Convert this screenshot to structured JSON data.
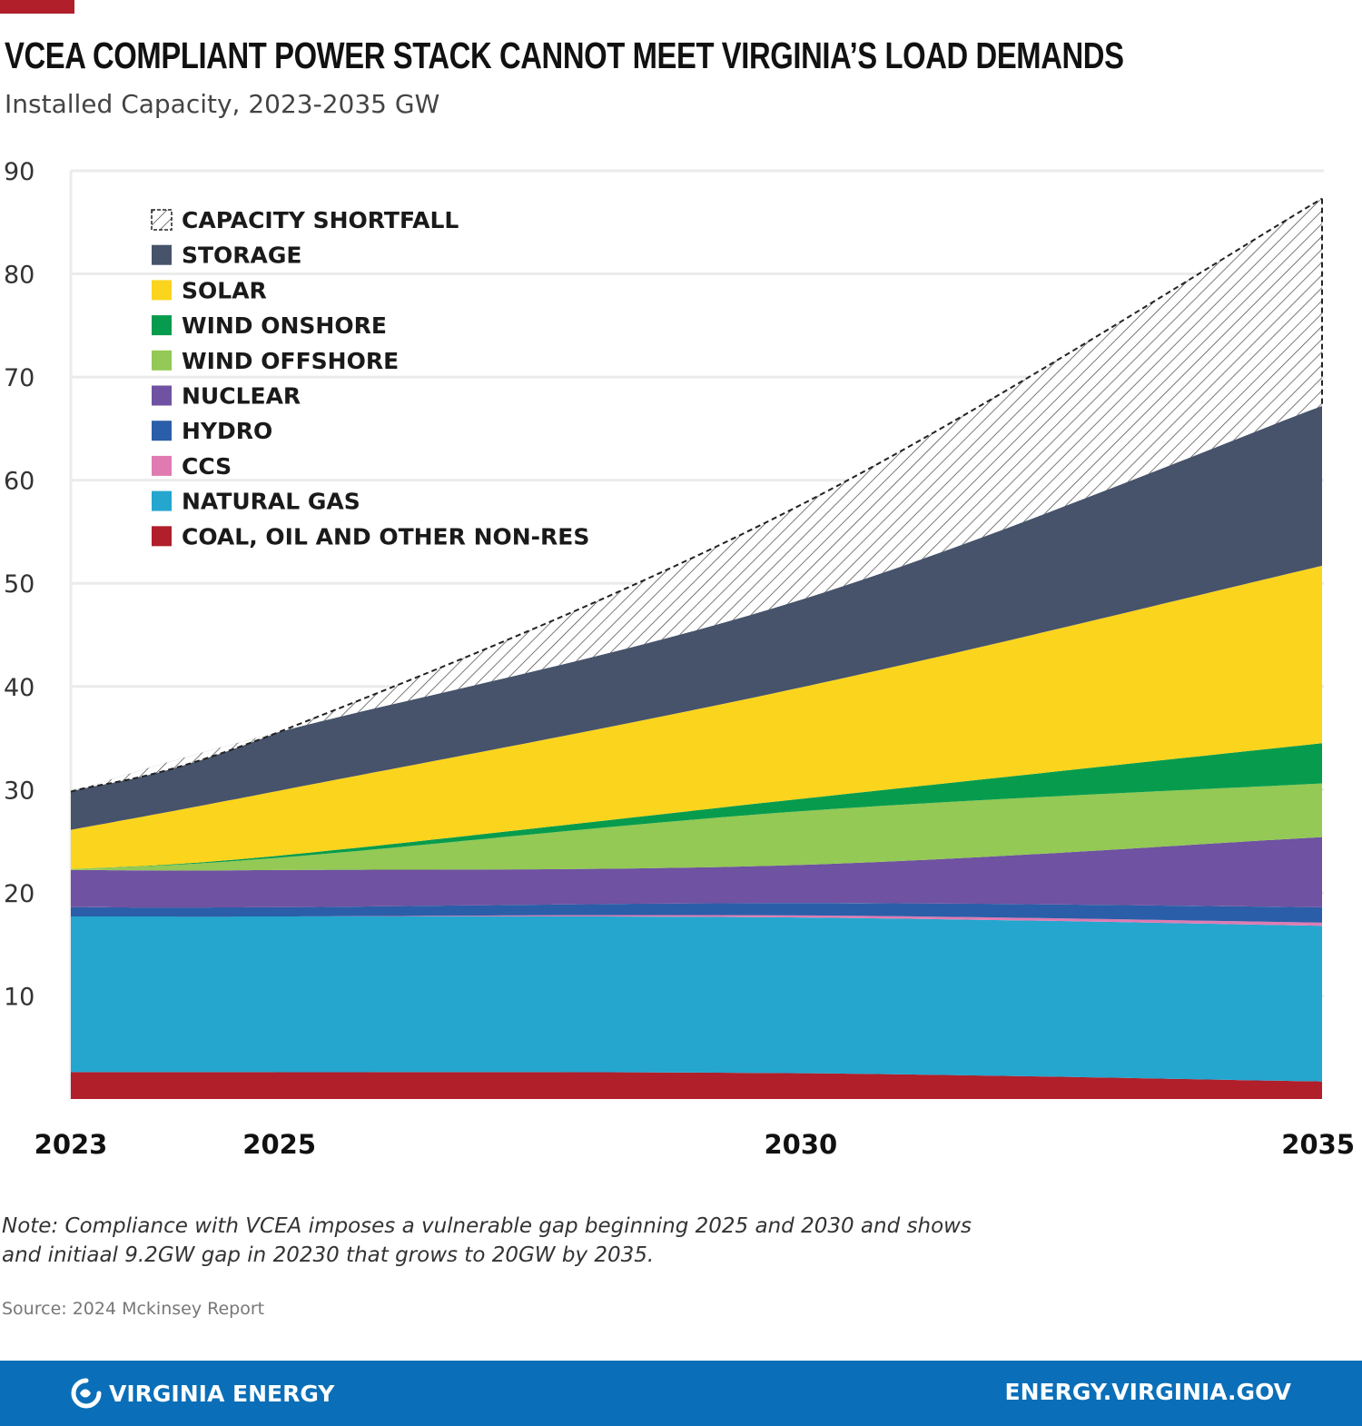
{
  "header": {
    "title": "VCEA COMPLIANT POWER STACK CANNOT MEET  VIRGINIA’S LOAD DEMANDS",
    "subtitle": "Installed Capacity, 2023-2035 GW"
  },
  "colors": {
    "accent": "#b01f2a",
    "footer_bg": "#0a6fb8",
    "grid": "#ebebeb"
  },
  "chart_data": {
    "type": "area",
    "stacked": true,
    "title": "VCEA COMPLIANT POWER STACK CANNOT MEET  VIRGINIA’S LOAD DEMANDS",
    "subtitle": "Installed Capacity, 2023-2035 GW",
    "x": [
      2023,
      2025,
      2030,
      2035
    ],
    "x_tick_labels": [
      "2023",
      "2025",
      "2030",
      "2035"
    ],
    "y_ticks": [
      10,
      20,
      30,
      40,
      50,
      60,
      70,
      80,
      90
    ],
    "ylim": [
      0,
      90
    ],
    "grid": true,
    "legend_position": "top-left",
    "series": [
      {
        "name": "COAL, OIL AND OTHER NON-RES",
        "color": "#b01f2a",
        "values": [
          2.6,
          2.6,
          2.5,
          1.7
        ]
      },
      {
        "name": "NATURAL GAS",
        "color": "#24a6cf",
        "values": [
          15.1,
          15.1,
          15.1,
          15.1
        ]
      },
      {
        "name": "CCS",
        "color": "#e07bb2",
        "values": [
          0,
          0,
          0.2,
          0.3
        ]
      },
      {
        "name": "HYDRO",
        "color": "#2b5ea8",
        "values": [
          0.9,
          0.9,
          1.2,
          1.5
        ]
      },
      {
        "name": "NUCLEAR",
        "color": "#6f52a1",
        "values": [
          3.6,
          3.6,
          3.7,
          6.8
        ]
      },
      {
        "name": "WIND OFFSHORE",
        "color": "#93c954",
        "values": [
          0.1,
          1.2,
          5.2,
          5.2
        ]
      },
      {
        "name": "WIND ONSHORE",
        "color": "#079c4d",
        "values": [
          0,
          0.2,
          1.2,
          3.9
        ]
      },
      {
        "name": "SOLAR",
        "color": "#fbd41e",
        "values": [
          3.8,
          6.3,
          10.8,
          17.2
        ]
      },
      {
        "name": "STORAGE",
        "color": "#46536b",
        "values": [
          3.7,
          5.7,
          8.5,
          15.5
        ]
      },
      {
        "name": "CAPACITY SHORTFALL",
        "color": "#ffffff",
        "pattern": "hatched",
        "values": [
          0,
          0,
          9.2,
          20.1
        ]
      }
    ],
    "legend_order": [
      "CAPACITY SHORTFALL",
      "STORAGE",
      "SOLAR",
      "WIND ONSHORE",
      "WIND OFFSHORE",
      "NUCLEAR",
      "HYDRO",
      "CCS",
      "NATURAL GAS",
      "COAL, OIL AND OTHER NON-RES"
    ]
  },
  "note": "Note: Compliance with VCEA imposes a vulnerable gap beginning 2025 and 2030 and shows and initiaal 9.2GW gap in 20230 that grows to 20GW by 2035.",
  "source": "Source: 2024 Mckinsey Report",
  "footer": {
    "brand": "VIRGINIA ENERGY",
    "brand_icon": "virginia-energy-logo-icon",
    "website": "ENERGY.VIRGINIA.GOV"
  }
}
